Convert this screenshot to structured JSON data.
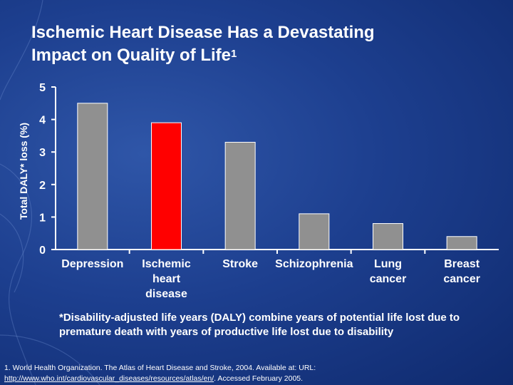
{
  "slide": {
    "title_line1": "Ischemic Heart Disease Has a Devastating",
    "title_line2": "Impact on Quality of Life",
    "title_superscript": "1",
    "footnote": "*Disability-adjusted life years (DALY) combine years of potential life lost due to premature death with years of productive life lost due to disability",
    "reference_text": "1. World Health Organization. The Atlas of Heart Disease and Stroke, 2004. Available at: URL:",
    "reference_link": "http://www.who.int/cardiovascular_diseases/resources/atlas/en/",
    "reference_accessed": ". Accessed February 2005."
  },
  "colors": {
    "bar_default": "#909090",
    "bar_highlight": "#ff0000",
    "axis": "#ffffff",
    "text": "#ffffff"
  },
  "chart_data": {
    "type": "bar",
    "title": "",
    "xlabel": "",
    "ylabel": "Total DALY* loss (%)",
    "ylim": [
      0,
      5
    ],
    "yticks": [
      0,
      1,
      2,
      3,
      4,
      5
    ],
    "grid": false,
    "categories": [
      "Depression",
      "Ischemic heart disease",
      "Stroke",
      "Schizophrenia",
      "Lung cancer",
      "Breast cancer"
    ],
    "category_display": [
      "Depression",
      "Ischemic\nheart\ndisease",
      "Stroke",
      "Schizophrenia",
      "Lung\ncancer",
      "Breast\ncancer"
    ],
    "values": [
      4.5,
      3.9,
      3.3,
      1.1,
      0.8,
      0.4
    ],
    "highlight_index": 1
  }
}
